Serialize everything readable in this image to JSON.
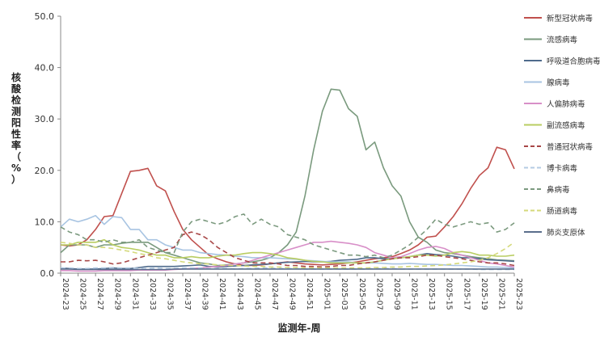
{
  "chart_data": {
    "type": "line",
    "xlabel": "监测年-周",
    "ylabel": "核酸检测阳性率（%）",
    "ylim": [
      0,
      50
    ],
    "yticks": [
      "0.0",
      "10.0",
      "20.0",
      "30.0",
      "40.0",
      "50.0"
    ],
    "grid": false,
    "legend_position": "right",
    "x": [
      "2024-23",
      "2024-24",
      "2024-25",
      "2024-26",
      "2024-27",
      "2024-28",
      "2024-29",
      "2024-30",
      "2024-31",
      "2024-32",
      "2024-33",
      "2024-34",
      "2024-35",
      "2024-36",
      "2024-37",
      "2024-38",
      "2024-39",
      "2024-40",
      "2024-41",
      "2024-42",
      "2024-43",
      "2024-44",
      "2024-45",
      "2024-46",
      "2024-47",
      "2024-48",
      "2024-49",
      "2024-50",
      "2024-51",
      "2024-52",
      "2025-01",
      "2025-02",
      "2025-03",
      "2025-04",
      "2025-05",
      "2025-06",
      "2025-07",
      "2025-08",
      "2025-09",
      "2025-10",
      "2025-11",
      "2025-12",
      "2025-13",
      "2025-14",
      "2025-15",
      "2025-16",
      "2025-17",
      "2025-18",
      "2025-19",
      "2025-20",
      "2025-21",
      "2025-22",
      "2025-23"
    ],
    "xtick_labels": [
      "2024-23",
      "2024-25",
      "2024-27",
      "2024-29",
      "2024-31",
      "2024-33",
      "2024-35",
      "2024-37",
      "2024-39",
      "2024-41",
      "2024-43",
      "2024-45",
      "2024-47",
      "2024-49",
      "2024-51",
      "2025-01",
      "2025-03",
      "2025-05",
      "2025-07",
      "2025-09",
      "2025-11",
      "2025-13",
      "2025-15",
      "2025-17",
      "2025-19",
      "2025-21",
      "2025-23"
    ],
    "series": [
      {
        "name": "新型冠状病毒",
        "color": "#c0504d",
        "dash": "solid",
        "values": [
          5.5,
          5.3,
          5.5,
          6.5,
          8.5,
          11.0,
          11.2,
          15.5,
          19.8,
          20.0,
          20.4,
          17.0,
          16.0,
          12.0,
          8.5,
          6.5,
          5.0,
          3.5,
          2.8,
          2.2,
          1.8,
          1.5,
          1.5,
          1.6,
          1.8,
          2.0,
          2.2,
          2.0,
          1.8,
          1.7,
          1.6,
          1.7,
          1.8,
          2.0,
          2.2,
          2.5,
          2.8,
          3.0,
          3.2,
          3.8,
          4.5,
          5.5,
          7.0,
          7.2,
          9.0,
          11.0,
          13.5,
          16.5,
          19.0,
          20.5,
          24.5,
          24.0,
          20.3
        ]
      },
      {
        "name": "流感病毒",
        "color": "#7a9a7e",
        "dash": "solid",
        "values": [
          4.0,
          5.5,
          5.5,
          5.5,
          5.0,
          5.5,
          5.5,
          5.8,
          6.0,
          6.0,
          6.0,
          5.0,
          4.0,
          3.5,
          3.0,
          2.5,
          2.0,
          1.8,
          1.5,
          1.6,
          1.8,
          2.0,
          2.2,
          2.5,
          3.0,
          4.0,
          5.5,
          8.0,
          15.0,
          24.0,
          31.5,
          35.8,
          35.6,
          32.0,
          30.5,
          24.0,
          25.5,
          20.5,
          17.0,
          15.0,
          10.0,
          7.0,
          6.0,
          4.5,
          4.0,
          3.8,
          3.5,
          3.2,
          3.0,
          2.8,
          2.6,
          2.5,
          2.4
        ]
      },
      {
        "name": "呼吸道合胞病毒",
        "color": "#4f6b8c",
        "dash": "solid",
        "values": [
          1.0,
          0.9,
          0.8,
          0.8,
          0.8,
          0.9,
          1.0,
          0.9,
          0.9,
          1.1,
          1.3,
          1.3,
          1.3,
          1.3,
          1.4,
          1.5,
          1.6,
          1.3,
          1.2,
          1.3,
          1.4,
          1.5,
          1.6,
          1.7,
          1.8,
          2.0,
          2.1,
          2.2,
          2.3,
          2.2,
          2.2,
          2.3,
          2.5,
          2.6,
          2.7,
          3.0,
          3.0,
          2.8,
          2.8,
          3.0,
          3.2,
          3.5,
          3.8,
          3.6,
          3.5,
          3.3,
          3.0,
          3.0,
          2.8,
          2.6,
          2.5,
          2.4,
          2.3
        ]
      },
      {
        "name": "腺病毒",
        "color": "#a8c4e2",
        "dash": "solid",
        "values": [
          9.0,
          10.5,
          10.0,
          10.5,
          11.2,
          9.5,
          11.0,
          10.8,
          8.5,
          8.5,
          6.5,
          6.5,
          5.5,
          5.0,
          4.5,
          4.5,
          4.0,
          3.8,
          3.6,
          3.5,
          3.3,
          3.2,
          3.0,
          3.0,
          3.0,
          2.9,
          2.8,
          2.7,
          2.5,
          2.4,
          2.3,
          2.2,
          2.2,
          2.2,
          2.0,
          2.0,
          2.0,
          1.9,
          1.8,
          1.8,
          1.9,
          1.8,
          1.7,
          1.7,
          1.6,
          1.5,
          1.5,
          1.4,
          1.3,
          1.2,
          1.2,
          1.1,
          1.0
        ]
      },
      {
        "name": "人偏肺病毒",
        "color": "#d88fc8",
        "dash": "solid",
        "values": [
          0.5,
          0.5,
          0.4,
          0.4,
          0.4,
          0.5,
          0.5,
          0.5,
          0.5,
          0.6,
          0.6,
          0.6,
          0.6,
          0.7,
          0.8,
          0.9,
          1.0,
          1.2,
          1.3,
          1.5,
          1.8,
          2.0,
          2.5,
          3.0,
          3.5,
          4.0,
          4.5,
          5.0,
          5.5,
          6.0,
          6.0,
          6.2,
          6.0,
          5.8,
          5.5,
          5.0,
          4.0,
          3.5,
          3.0,
          3.2,
          3.8,
          4.5,
          5.0,
          5.2,
          4.8,
          4.0,
          3.5,
          3.0,
          2.5,
          2.0,
          1.8,
          1.5,
          1.2
        ]
      },
      {
        "name": "副流感病毒",
        "color": "#b9cd62",
        "dash": "solid",
        "values": [
          5.5,
          5.5,
          6.0,
          6.0,
          6.0,
          6.5,
          5.5,
          5.0,
          4.8,
          4.5,
          4.0,
          3.5,
          3.5,
          3.0,
          3.0,
          3.2,
          3.0,
          3.0,
          3.3,
          3.5,
          3.5,
          3.8,
          4.0,
          4.0,
          3.8,
          3.5,
          3.0,
          2.8,
          2.5,
          2.3,
          2.2,
          2.0,
          2.0,
          2.0,
          2.0,
          2.0,
          2.2,
          2.5,
          2.8,
          3.0,
          3.2,
          3.5,
          3.5,
          3.3,
          3.5,
          4.0,
          4.2,
          4.0,
          3.5,
          3.5,
          3.3,
          3.3,
          3.5
        ]
      },
      {
        "name": "普通冠状病毒",
        "color": "#a84747",
        "dash": "dash",
        "values": [
          2.2,
          2.2,
          2.5,
          2.4,
          2.5,
          2.2,
          1.8,
          2.0,
          2.5,
          3.0,
          3.5,
          4.0,
          4.5,
          5.0,
          7.5,
          8.0,
          7.5,
          6.5,
          5.0,
          4.0,
          3.0,
          2.5,
          2.0,
          2.0,
          2.0,
          1.8,
          1.5,
          1.5,
          1.3,
          1.3,
          1.2,
          1.3,
          1.5,
          1.5,
          1.8,
          2.0,
          2.2,
          2.5,
          2.8,
          3.0,
          3.0,
          3.2,
          3.5,
          3.5,
          3.2,
          3.0,
          2.8,
          2.5,
          2.2,
          2.0,
          2.0,
          1.8,
          1.5
        ]
      },
      {
        "name": "博卡病毒",
        "color": "#b4cbe3",
        "dash": "dash",
        "values": [
          1.0,
          1.0,
          0.9,
          0.9,
          1.0,
          1.0,
          1.1,
          1.0,
          1.0,
          0.9,
          0.9,
          1.0,
          0.9,
          0.9,
          1.0,
          1.0,
          1.0,
          0.9,
          0.9,
          0.9,
          0.8,
          0.9,
          0.9,
          1.0,
          1.0,
          0.9,
          0.9,
          0.9,
          0.8,
          0.8,
          0.8,
          0.8,
          0.8,
          0.8,
          0.8,
          0.8,
          0.9,
          0.9,
          0.9,
          0.8,
          0.8,
          0.8,
          0.8,
          0.8,
          0.8,
          0.8,
          0.8,
          0.8,
          0.7,
          0.7,
          0.7,
          0.7,
          0.7
        ]
      },
      {
        "name": "鼻病毒",
        "color": "#7c9a7f",
        "dash": "dash",
        "values": [
          9.0,
          8.0,
          7.5,
          6.5,
          6.5,
          6.0,
          6.5,
          6.0,
          6.0,
          6.5,
          5.0,
          4.5,
          4.0,
          4.0,
          8.0,
          10.0,
          10.5,
          10.0,
          9.5,
          10.0,
          11.0,
          11.5,
          9.5,
          10.5,
          9.5,
          9.0,
          7.5,
          7.0,
          6.5,
          5.5,
          5.0,
          4.5,
          4.0,
          3.5,
          3.5,
          3.2,
          3.5,
          3.0,
          3.5,
          4.5,
          5.5,
          7.0,
          8.5,
          10.5,
          9.5,
          9.0,
          9.5,
          10.0,
          9.5,
          9.8,
          8.0,
          8.5,
          9.8
        ]
      },
      {
        "name": "肠道病毒",
        "color": "#d4d97a",
        "dash": "dash",
        "values": [
          6.0,
          5.8,
          5.5,
          5.5,
          5.0,
          5.0,
          4.8,
          4.5,
          4.2,
          3.8,
          3.5,
          3.0,
          2.8,
          2.5,
          2.2,
          2.0,
          1.8,
          1.8,
          1.6,
          1.5,
          1.5,
          1.4,
          1.3,
          1.3,
          1.2,
          1.2,
          1.1,
          1.1,
          1.0,
          1.0,
          1.0,
          1.0,
          1.0,
          1.0,
          1.0,
          1.0,
          1.1,
          1.1,
          1.2,
          1.2,
          1.3,
          1.3,
          1.4,
          1.5,
          1.6,
          1.8,
          2.0,
          2.2,
          2.5,
          3.0,
          3.8,
          4.8,
          6.0
        ]
      },
      {
        "name": "肺炎支原体",
        "color": "#5a6e8c",
        "dash": "solid",
        "values": [
          0.8,
          0.8,
          0.7,
          0.7,
          0.7,
          0.7,
          0.7,
          0.7,
          0.7,
          0.7,
          0.7,
          0.7,
          0.7,
          0.8,
          0.8,
          0.8,
          0.8,
          0.8,
          0.8,
          0.8,
          0.8,
          0.8,
          0.8,
          0.8,
          0.8,
          0.8,
          0.8,
          0.8,
          0.8,
          0.8,
          0.8,
          0.8,
          0.8,
          0.8,
          0.8,
          0.8,
          0.8,
          0.8,
          0.8,
          0.8,
          0.8,
          0.8,
          0.8,
          0.8,
          0.8,
          0.8,
          0.8,
          0.8,
          0.8,
          0.8,
          0.8,
          0.8,
          0.8
        ]
      }
    ]
  }
}
